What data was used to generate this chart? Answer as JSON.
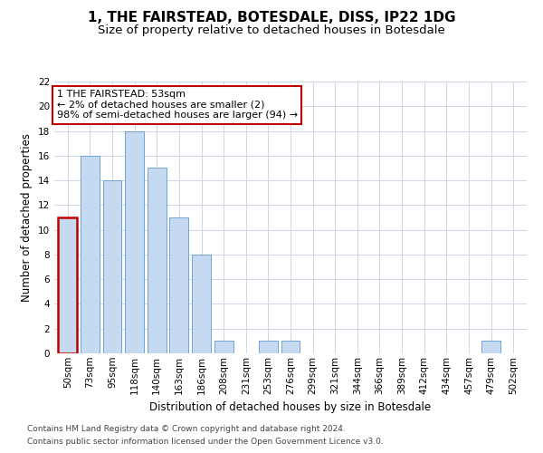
{
  "title": "1, THE FAIRSTEAD, BOTESDALE, DISS, IP22 1DG",
  "subtitle": "Size of property relative to detached houses in Botesdale",
  "xlabel": "Distribution of detached houses by size in Botesdale",
  "ylabel": "Number of detached properties",
  "bar_labels": [
    "50sqm",
    "73sqm",
    "95sqm",
    "118sqm",
    "140sqm",
    "163sqm",
    "186sqm",
    "208sqm",
    "231sqm",
    "253sqm",
    "276sqm",
    "299sqm",
    "321sqm",
    "344sqm",
    "366sqm",
    "389sqm",
    "412sqm",
    "434sqm",
    "457sqm",
    "479sqm",
    "502sqm"
  ],
  "bar_values": [
    11,
    16,
    14,
    18,
    15,
    11,
    8,
    1,
    0,
    1,
    1,
    0,
    0,
    0,
    0,
    0,
    0,
    0,
    0,
    1,
    0
  ],
  "bar_color": "#c5d9f0",
  "bar_edge_color": "#5b9bd5",
  "highlight_bar_index": 0,
  "highlight_bar_edge_color": "#c00000",
  "annotation_text": "1 THE FAIRSTEAD: 53sqm\n← 2% of detached houses are smaller (2)\n98% of semi-detached houses are larger (94) →",
  "annotation_box_edge_color": "#c00000",
  "ylim": [
    0,
    22
  ],
  "yticks": [
    0,
    2,
    4,
    6,
    8,
    10,
    12,
    14,
    16,
    18,
    20,
    22
  ],
  "footer_line1": "Contains HM Land Registry data © Crown copyright and database right 2024.",
  "footer_line2": "Contains public sector information licensed under the Open Government Licence v3.0.",
  "bg_color": "#ffffff",
  "grid_color": "#d0d8e8",
  "title_fontsize": 11,
  "subtitle_fontsize": 9.5,
  "axis_label_fontsize": 8.5,
  "tick_fontsize": 7.5,
  "annotation_fontsize": 8,
  "footer_fontsize": 6.5
}
